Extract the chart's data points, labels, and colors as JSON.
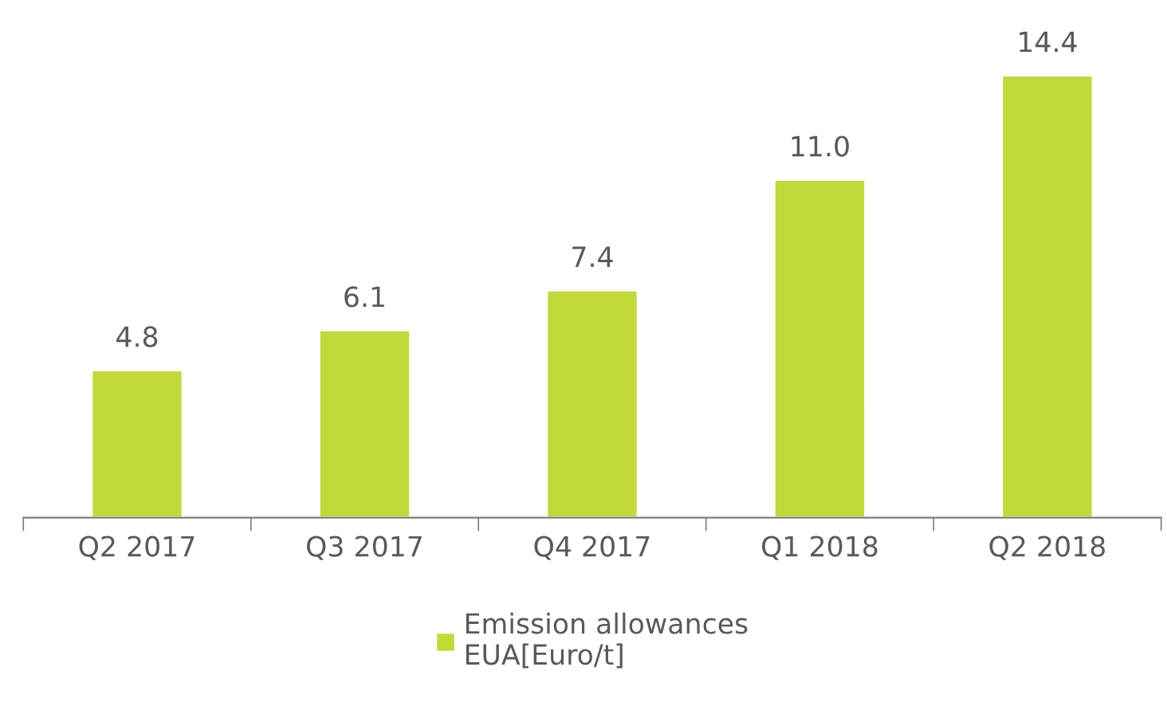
{
  "chart_data": {
    "type": "bar",
    "categories": [
      "Q2 2017",
      "Q3 2017",
      "Q4 2017",
      "Q1 2018",
      "Q2 2018"
    ],
    "series": [
      {
        "name": "Emission allowances\nEUA[Euro/t]",
        "color": "#c3d93b",
        "values": [
          4.8,
          6.1,
          7.4,
          11.0,
          14.4
        ],
        "value_labels": [
          "4.8",
          "6.1",
          "7.4",
          "11.0",
          "14.4"
        ]
      }
    ],
    "legend": "bottom",
    "tick_labels": "x"
  }
}
